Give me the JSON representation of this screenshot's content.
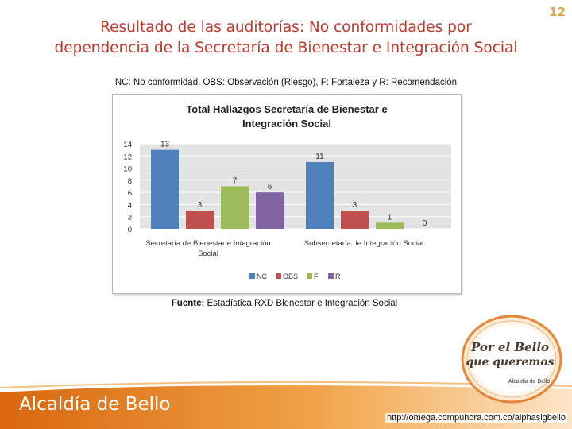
{
  "slide_number": "12",
  "title_line1": "Resultado de las auditorías: No conformidades por",
  "title_line2": "dependencia de la Secretaría de Bienestar e Integración Social",
  "legend_note": "NC: No conformidad, OBS: Observación (Riesgo), F: Fortaleza y R: Recomendación",
  "source_label": "Fuente:",
  "source_text": " Estadística RXD Bienestar e Integración Social",
  "footer_title": "Alcaldía de Bello",
  "footer_url": "http://omega.compuhora.com.co/alphasigbello",
  "logo": {
    "line1": "Por el Bello",
    "line2": "que queremos",
    "line3": "Alcaldía de Bello"
  },
  "colors": {
    "title": "#c0392b",
    "footer": "#e07a18",
    "NC": "#4f81bd",
    "OBS": "#c0504d",
    "F": "#9bbb59",
    "R": "#8064a2"
  },
  "chart_data": {
    "type": "bar",
    "title": "Total Hallazgos Secretaría de Bienestar e Integración Social",
    "title_lines": [
      "Total Hallazgos Secretaría de Bienestar e",
      "Integración Social"
    ],
    "categories": [
      "Secretaría de Bienestar e Integración Social",
      "Subsecretaría de Integración Social"
    ],
    "category_lines": [
      [
        "Secretaría de Bienestar e Integración",
        "Social"
      ],
      [
        "Subsecretaría de Integración Social"
      ]
    ],
    "series": [
      {
        "name": "NC",
        "values": [
          13,
          11
        ]
      },
      {
        "name": "OBS",
        "values": [
          3,
          3
        ]
      },
      {
        "name": "F",
        "values": [
          7,
          1
        ]
      },
      {
        "name": "R",
        "values": [
          6,
          0
        ]
      }
    ],
    "yticks": [
      "0",
      "2",
      "4",
      "6",
      "8",
      "10",
      "12",
      "14"
    ],
    "ylim": [
      0,
      14
    ],
    "grid": true,
    "legend_position": "bottom"
  }
}
